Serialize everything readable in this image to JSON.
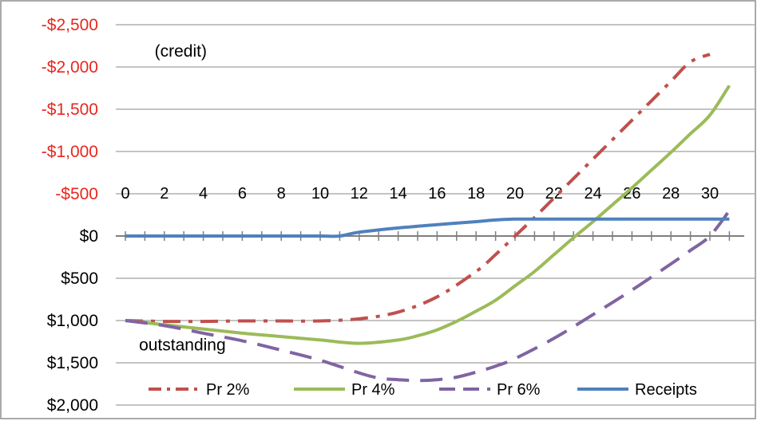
{
  "chart_data": {
    "type": "line",
    "title": "",
    "xlabel": "",
    "ylabel": "",
    "xlim": [
      0,
      31
    ],
    "ylim": [
      -2500,
      2000
    ],
    "y_inverted": true,
    "grid": "horizontal",
    "legend_position": "bottom-inside",
    "x_ticks": [
      "0",
      "2",
      "4",
      "6",
      "8",
      "10",
      "12",
      "14",
      "16",
      "18",
      "20",
      "22",
      "24",
      "26",
      "28",
      "30"
    ],
    "y_ticks": [
      {
        "value": -2500,
        "label": "-$2,500",
        "color": "#e8271e"
      },
      {
        "value": -2000,
        "label": "-$2,000",
        "color": "#e8271e"
      },
      {
        "value": -1500,
        "label": "-$1,500",
        "color": "#e8271e"
      },
      {
        "value": -1000,
        "label": "-$1,000",
        "color": "#e8271e"
      },
      {
        "value": -500,
        "label": "-$500",
        "color": "#e8271e"
      },
      {
        "value": 0,
        "label": "$0",
        "color": "#000000"
      },
      {
        "value": 500,
        "label": "$500",
        "color": "#000000"
      },
      {
        "value": 1000,
        "label": "$1,000",
        "color": "#000000"
      },
      {
        "value": 1500,
        "label": "$1,500",
        "color": "#000000"
      },
      {
        "value": 2000,
        "label": "$2,000",
        "color": "#000000"
      }
    ],
    "annotations": [
      {
        "text": "(credit)",
        "x": 1.5,
        "y": -2190
      },
      {
        "text": "outstanding",
        "x": 0.7,
        "y": 1290
      }
    ],
    "series": [
      {
        "name": "Pr 2%",
        "color": "#c0504d",
        "dash": "dashdot",
        "x": [
          0,
          2,
          4,
          6,
          8,
          10,
          12,
          14,
          16,
          18,
          19,
          20,
          21,
          22,
          23,
          24,
          25,
          26,
          27,
          28,
          29,
          30
        ],
        "y": [
          1000,
          1010,
          1010,
          1005,
          1005,
          1005,
          980,
          900,
          720,
          420,
          220,
          0,
          -220,
          -450,
          -680,
          -910,
          -1140,
          -1370,
          -1600,
          -1830,
          -2060,
          -2150
        ]
      },
      {
        "name": "Pr 4%",
        "color": "#9bbb59",
        "dash": "solid",
        "x": [
          0,
          2,
          4,
          6,
          8,
          10,
          12,
          14,
          15,
          16,
          17,
          18,
          19,
          20,
          21,
          22,
          23,
          24,
          25,
          26,
          27,
          28,
          29,
          30,
          31
        ],
        "y": [
          1000,
          1050,
          1100,
          1150,
          1190,
          1230,
          1270,
          1230,
          1180,
          1110,
          1010,
          890,
          760,
          590,
          420,
          220,
          20,
          -170,
          -370,
          -570,
          -780,
          -990,
          -1210,
          -1430,
          -1780
        ]
      },
      {
        "name": "Pr 6%",
        "color": "#8064a2",
        "dash": "dash",
        "x": [
          0,
          2,
          4,
          6,
          8,
          10,
          12,
          13,
          14,
          15,
          16,
          17,
          18,
          19,
          20,
          22,
          24,
          26,
          28,
          29,
          30,
          31
        ],
        "y": [
          1000,
          1060,
          1150,
          1240,
          1350,
          1470,
          1620,
          1680,
          1700,
          1710,
          1700,
          1670,
          1610,
          1540,
          1450,
          1210,
          930,
          640,
          330,
          170,
          0,
          -300
        ]
      },
      {
        "name": "Receipts",
        "color": "#4f81bd",
        "dash": "solid",
        "x": [
          0,
          2,
          4,
          6,
          8,
          10,
          11,
          12,
          14,
          16,
          18,
          19,
          20,
          22,
          24,
          26,
          28,
          30,
          31
        ],
        "y": [
          0,
          0,
          0,
          0,
          0,
          0,
          0,
          -45,
          -95,
          -135,
          -170,
          -190,
          -200,
          -200,
          -200,
          -200,
          -200,
          -200,
          -200
        ]
      }
    ]
  }
}
